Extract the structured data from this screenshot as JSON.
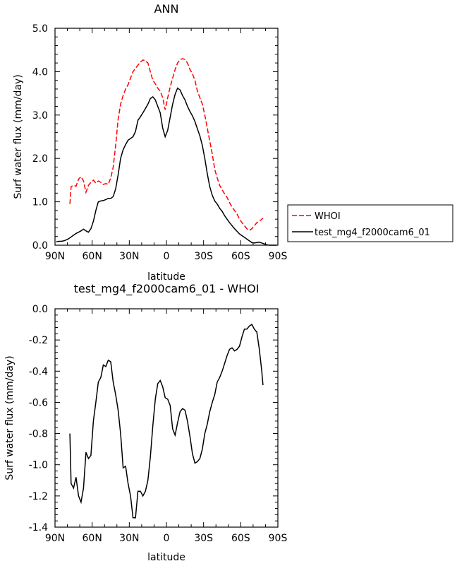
{
  "chart_data": [
    {
      "type": "line",
      "title": "ANN",
      "xlabel": "latitude",
      "ylabel": "Surf water flux (mm/day)",
      "xlim": [
        90,
        -90
      ],
      "ylim": [
        0,
        5
      ],
      "xticks": [
        90,
        60,
        30,
        0,
        -30,
        -60,
        -90
      ],
      "xtick_labels": [
        "90N",
        "60N",
        "30N",
        "0",
        "30S",
        "60S",
        "90S"
      ],
      "yticks": [
        0,
        1,
        2,
        3,
        4,
        5
      ],
      "ytick_labels": [
        "0.0",
        "1.0",
        "2.0",
        "3.0",
        "4.0",
        "5.0"
      ],
      "legend_position": "right",
      "series": [
        {
          "name": "WHOI",
          "color": "#ff0000",
          "dash": "dashed",
          "x": [
            78,
            77,
            75,
            73,
            71,
            69,
            67,
            65,
            63,
            61,
            59,
            57,
            55,
            53,
            51,
            49,
            47,
            45,
            43,
            41,
            39,
            37,
            35,
            33,
            31,
            29,
            27,
            25,
            23,
            21,
            19,
            17,
            15,
            13,
            11,
            9,
            7,
            5,
            3,
            1,
            -1,
            -3,
            -5,
            -7,
            -9,
            -11,
            -13,
            -15,
            -17,
            -19,
            -21,
            -23,
            -25,
            -27,
            -29,
            -31,
            -33,
            -35,
            -37,
            -39,
            -41,
            -43,
            -45,
            -47,
            -49,
            -51,
            -53,
            -55,
            -57,
            -59,
            -61,
            -63,
            -65,
            -67,
            -69,
            -71,
            -73,
            -75,
            -77,
            -78
          ],
          "y": [
            0.95,
            1.35,
            1.38,
            1.36,
            1.52,
            1.58,
            1.48,
            1.22,
            1.38,
            1.45,
            1.5,
            1.43,
            1.48,
            1.45,
            1.4,
            1.42,
            1.4,
            1.55,
            1.8,
            2.3,
            2.9,
            3.25,
            3.45,
            3.6,
            3.7,
            3.85,
            4.0,
            4.08,
            4.15,
            4.22,
            4.27,
            4.25,
            4.2,
            4.0,
            3.8,
            3.72,
            3.62,
            3.55,
            3.4,
            3.12,
            3.4,
            3.65,
            3.85,
            4.05,
            4.2,
            4.28,
            4.3,
            4.28,
            4.2,
            4.05,
            3.95,
            3.8,
            3.55,
            3.4,
            3.25,
            3.0,
            2.7,
            2.4,
            2.1,
            1.75,
            1.55,
            1.38,
            1.28,
            1.18,
            1.1,
            0.98,
            0.88,
            0.8,
            0.72,
            0.6,
            0.52,
            0.45,
            0.38,
            0.34,
            0.38,
            0.45,
            0.52,
            0.55,
            0.6,
            0.62
          ]
        },
        {
          "name": "test_mg4_f2000cam6_01",
          "color": "#000000",
          "dash": "solid",
          "x": [
            89,
            87,
            85,
            83,
            81,
            79,
            77,
            75,
            73,
            71,
            69,
            67,
            65,
            63,
            61,
            59,
            57,
            55,
            53,
            51,
            49,
            47,
            45,
            43,
            41,
            39,
            37,
            35,
            33,
            31,
            29,
            27,
            25,
            23,
            21,
            19,
            17,
            15,
            13,
            11,
            9,
            7,
            5,
            3,
            1,
            -1,
            -3,
            -5,
            -7,
            -9,
            -11,
            -13,
            -15,
            -17,
            -19,
            -21,
            -23,
            -25,
            -27,
            -29,
            -31,
            -33,
            -35,
            -37,
            -39,
            -41,
            -43,
            -45,
            -47,
            -49,
            -51,
            -53,
            -55,
            -57,
            -59,
            -61,
            -63,
            -65,
            -67,
            -69,
            -71,
            -73,
            -75,
            -77,
            -79,
            -81,
            -83,
            -85,
            -87,
            -89
          ],
          "y": [
            0.08,
            0.09,
            0.09,
            0.1,
            0.12,
            0.15,
            0.19,
            0.23,
            0.27,
            0.3,
            0.33,
            0.37,
            0.33,
            0.3,
            0.38,
            0.55,
            0.8,
            1.0,
            1.02,
            1.03,
            1.05,
            1.08,
            1.08,
            1.12,
            1.3,
            1.62,
            2.0,
            2.2,
            2.32,
            2.42,
            2.46,
            2.5,
            2.62,
            2.88,
            2.96,
            3.05,
            3.15,
            3.25,
            3.38,
            3.42,
            3.35,
            3.2,
            3.05,
            2.7,
            2.5,
            2.65,
            2.95,
            3.25,
            3.48,
            3.62,
            3.58,
            3.45,
            3.35,
            3.2,
            3.08,
            2.98,
            2.85,
            2.68,
            2.52,
            2.3,
            2.0,
            1.65,
            1.35,
            1.15,
            1.02,
            0.95,
            0.85,
            0.78,
            0.68,
            0.6,
            0.52,
            0.45,
            0.38,
            0.32,
            0.26,
            0.22,
            0.18,
            0.14,
            0.1,
            0.06,
            0.05,
            0.06,
            0.07,
            0.05,
            0.03,
            0.01,
            0.0,
            0.0,
            0.0,
            0.0
          ]
        }
      ]
    },
    {
      "type": "line",
      "title": "test_mg4_f2000cam6_01 - WHOI",
      "xlabel": "latitude",
      "ylabel": "Surf water flux (mm/day)",
      "xlim": [
        90,
        -90
      ],
      "ylim": [
        -1.4,
        0
      ],
      "xticks": [
        90,
        60,
        30,
        0,
        -30,
        -60,
        -90
      ],
      "xtick_labels": [
        "90N",
        "60N",
        "30N",
        "0",
        "30S",
        "60S",
        "90S"
      ],
      "yticks": [
        -1.4,
        -1.2,
        -1.0,
        -0.8,
        -0.6,
        -0.4,
        -0.2,
        0.0
      ],
      "ytick_labels": [
        "-1.4",
        "-1.2",
        "-1.0",
        "-0.8",
        "-0.6",
        "-0.4",
        "-0.2",
        "0.0"
      ],
      "series": [
        {
          "color": "#000000",
          "dash": "solid",
          "x": [
            78,
            77,
            75,
            73,
            71,
            69,
            67,
            65,
            63,
            61,
            59,
            57,
            55,
            53,
            51,
            49,
            47,
            45,
            43,
            41,
            39,
            37,
            35,
            33,
            31,
            29,
            27,
            25,
            23,
            21,
            19,
            17,
            15,
            13,
            11,
            9,
            7,
            5,
            3,
            1,
            -1,
            -3,
            -5,
            -7,
            -9,
            -11,
            -13,
            -15,
            -17,
            -19,
            -21,
            -23,
            -25,
            -27,
            -29,
            -31,
            -33,
            -35,
            -37,
            -39,
            -41,
            -43,
            -45,
            -47,
            -49,
            -51,
            -53,
            -55,
            -57,
            -59,
            -61,
            -63,
            -65,
            -67,
            -69,
            -71,
            -73,
            -75,
            -77,
            -78
          ],
          "y": [
            -0.8,
            -1.12,
            -1.15,
            -1.08,
            -1.2,
            -1.24,
            -1.15,
            -0.92,
            -0.96,
            -0.94,
            -0.72,
            -0.6,
            -0.47,
            -0.44,
            -0.36,
            -0.37,
            -0.33,
            -0.34,
            -0.47,
            -0.55,
            -0.65,
            -0.8,
            -1.02,
            -1.01,
            -1.12,
            -1.2,
            -1.34,
            -1.34,
            -1.17,
            -1.17,
            -1.2,
            -1.17,
            -1.1,
            -0.95,
            -0.75,
            -0.58,
            -0.48,
            -0.46,
            -0.5,
            -0.57,
            -0.58,
            -0.62,
            -0.77,
            -0.81,
            -0.73,
            -0.66,
            -0.64,
            -0.65,
            -0.72,
            -0.82,
            -0.93,
            -0.99,
            -0.98,
            -0.96,
            -0.9,
            -0.8,
            -0.74,
            -0.66,
            -0.6,
            -0.55,
            -0.47,
            -0.44,
            -0.4,
            -0.35,
            -0.3,
            -0.26,
            -0.25,
            -0.27,
            -0.26,
            -0.24,
            -0.18,
            -0.13,
            -0.13,
            -0.11,
            -0.1,
            -0.13,
            -0.15,
            -0.26,
            -0.4,
            -0.49
          ]
        }
      ]
    }
  ]
}
